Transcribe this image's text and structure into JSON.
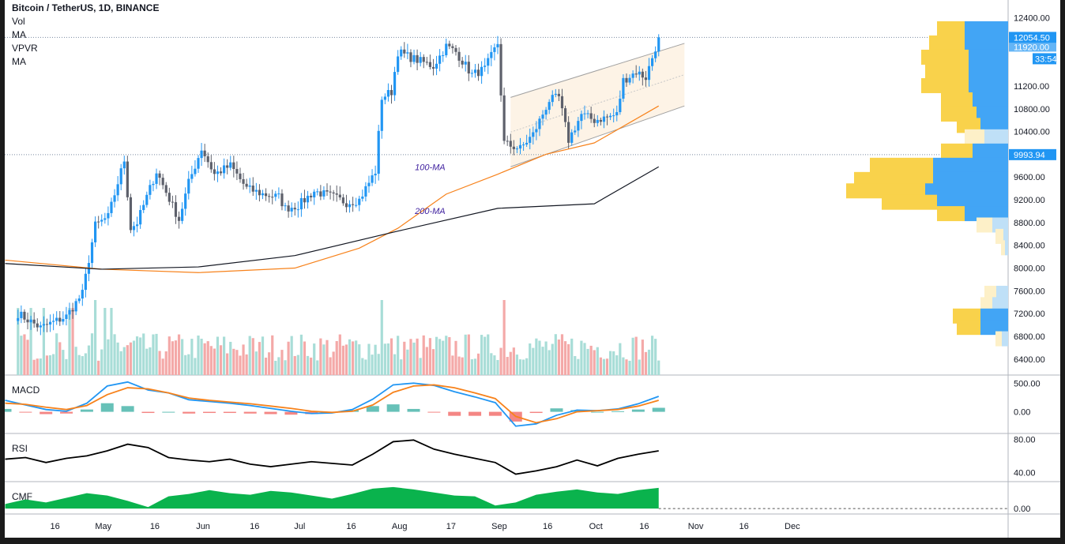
{
  "header": {
    "title": "Bitcoin / TetherUS, 1D, BINANCE",
    "indicators": [
      "Vol",
      "MA",
      "VPVR",
      "MA"
    ]
  },
  "panes": {
    "macd": "MACD",
    "rsi": "RSI",
    "cmf": "CMF"
  },
  "ma_labels": {
    "ma100": "100-MA",
    "ma200": "200-MA"
  },
  "price_tags": {
    "last_price": "12054.50",
    "countdown": "33:54",
    "level": "9993.94",
    "hidden_partial": "11920.00"
  },
  "colors": {
    "up": "#26a69a",
    "down": "#ef5350",
    "candle_up": "#2196f3",
    "candle_down": "#5d606b",
    "vol_up": "#a8ddd7",
    "vol_down": "#f4a9a8",
    "ma100": "#f7821b",
    "ma200": "#131722",
    "vpvr_up": "#42a5f5",
    "vpvr_down": "#f9d24b",
    "cmf": "#0ab34d",
    "channel_fill": "#fdf3e6"
  },
  "chart_data": [
    {
      "type": "candlestick",
      "title": "Bitcoin / TetherUS, 1D, BINANCE",
      "y_ticks": [
        "12400.00",
        "11200.00",
        "10800.00",
        "10400.00",
        "9600.00",
        "9200.00",
        "8800.00",
        "8400.00",
        "8000.00",
        "7600.00",
        "7200.00",
        "6800.00",
        "6400.00"
      ],
      "y_range": [
        6250,
        12500
      ],
      "x_ticks": [
        "16",
        "May",
        "16",
        "Jun",
        "16",
        "Jul",
        "16",
        "Aug",
        "17",
        "Sep",
        "16",
        "Oct",
        "16",
        "Nov",
        "16",
        "Dec"
      ],
      "anchors": [
        [
          "2020-04-05",
          7200
        ],
        [
          "2020-04-12",
          6950
        ],
        [
          "2020-04-20",
          7150
        ],
        [
          "2020-04-25",
          7550
        ],
        [
          "2020-04-29",
          8750
        ],
        [
          "2020-05-03",
          8900
        ],
        [
          "2020-05-08",
          9900
        ],
        [
          "2020-05-10",
          8700
        ],
        [
          "2020-05-12",
          8800
        ],
        [
          "2020-05-18",
          9700
        ],
        [
          "2020-05-25",
          8850
        ],
        [
          "2020-05-28",
          9500
        ],
        [
          "2020-06-01",
          10100
        ],
        [
          "2020-06-05",
          9650
        ],
        [
          "2020-06-10",
          9800
        ],
        [
          "2020-06-15",
          9400
        ],
        [
          "2020-06-20",
          9300
        ],
        [
          "2020-06-25",
          9250
        ],
        [
          "2020-06-27",
          9050
        ],
        [
          "2020-07-01",
          9100
        ],
        [
          "2020-07-06",
          9350
        ],
        [
          "2020-07-12",
          9250
        ],
        [
          "2020-07-16",
          9150
        ],
        [
          "2020-07-20",
          9200
        ],
        [
          "2020-07-25",
          9700
        ],
        [
          "2020-07-27",
          11000
        ],
        [
          "2020-07-30",
          11100
        ],
        [
          "2020-08-01",
          11800
        ],
        [
          "2020-08-05",
          11700
        ],
        [
          "2020-08-12",
          11550
        ],
        [
          "2020-08-16",
          11900
        ],
        [
          "2020-08-19",
          11800
        ],
        [
          "2020-08-24",
          11400
        ],
        [
          "2020-08-28",
          11500
        ],
        [
          "2020-09-01",
          11950
        ],
        [
          "2020-09-03",
          10200
        ],
        [
          "2020-09-05",
          10150
        ],
        [
          "2020-09-08",
          10100
        ],
        [
          "2020-09-12",
          10350
        ],
        [
          "2020-09-17",
          10950
        ],
        [
          "2020-09-20",
          11000
        ],
        [
          "2020-09-23",
          10250
        ],
        [
          "2020-09-27",
          10700
        ],
        [
          "2020-10-01",
          10600
        ],
        [
          "2020-10-05",
          10650
        ],
        [
          "2020-10-08",
          10700
        ],
        [
          "2020-10-10",
          11300
        ],
        [
          "2020-10-14",
          11450
        ],
        [
          "2020-10-17",
          11350
        ],
        [
          "2020-10-21",
          12050
        ]
      ],
      "volume_note": "Vol histogram shown below candles",
      "last_price": 12054.5
    },
    {
      "type": "line",
      "title": "MACD",
      "y_ticks": [
        "500.00",
        "0.00"
      ],
      "y_range": [
        -350,
        600
      ],
      "series": [
        {
          "name": "MACD",
          "color": "#2196f3",
          "values": [
            200,
            120,
            40,
            10,
            150,
            450,
            520,
            380,
            330,
            210,
            180,
            150,
            110,
            60,
            10,
            -30,
            -20,
            40,
            220,
            470,
            500,
            460,
            350,
            260,
            160,
            -250,
            -210,
            -60,
            30,
            20,
            50,
            140,
            270
          ]
        },
        {
          "name": "Signal",
          "color": "#f7821b",
          "values": [
            150,
            130,
            80,
            40,
            110,
            300,
            420,
            400,
            330,
            240,
            200,
            170,
            140,
            100,
            60,
            10,
            -10,
            10,
            120,
            340,
            450,
            470,
            420,
            330,
            230,
            -80,
            -190,
            -120,
            0,
            20,
            40,
            100,
            200
          ]
        }
      ]
    },
    {
      "type": "line",
      "title": "RSI",
      "y_ticks": [
        "80.00",
        "40.00"
      ],
      "y_range": [
        30,
        85
      ],
      "series": [
        {
          "name": "RSI",
          "color": "#000000",
          "values": [
            56,
            58,
            52,
            57,
            60,
            66,
            74,
            70,
            58,
            55,
            53,
            56,
            50,
            47,
            50,
            53,
            51,
            49,
            62,
            77,
            79,
            68,
            62,
            57,
            52,
            38,
            42,
            47,
            55,
            48,
            57,
            62,
            66
          ]
        }
      ]
    },
    {
      "type": "area",
      "title": "CMF",
      "y_ticks": [
        "0.00"
      ],
      "y_range": [
        -0.06,
        0.32
      ],
      "series": [
        {
          "name": "CMF",
          "color": "#0ab34d",
          "values": [
            0.06,
            0.12,
            0.08,
            0.14,
            0.2,
            0.17,
            0.1,
            0.02,
            0.16,
            0.19,
            0.24,
            0.2,
            0.18,
            0.23,
            0.21,
            0.17,
            0.13,
            0.19,
            0.26,
            0.28,
            0.25,
            0.21,
            0.17,
            0.16,
            0.04,
            0.08,
            0.18,
            0.22,
            0.25,
            0.21,
            0.19,
            0.24,
            0.27
          ]
        }
      ]
    }
  ]
}
